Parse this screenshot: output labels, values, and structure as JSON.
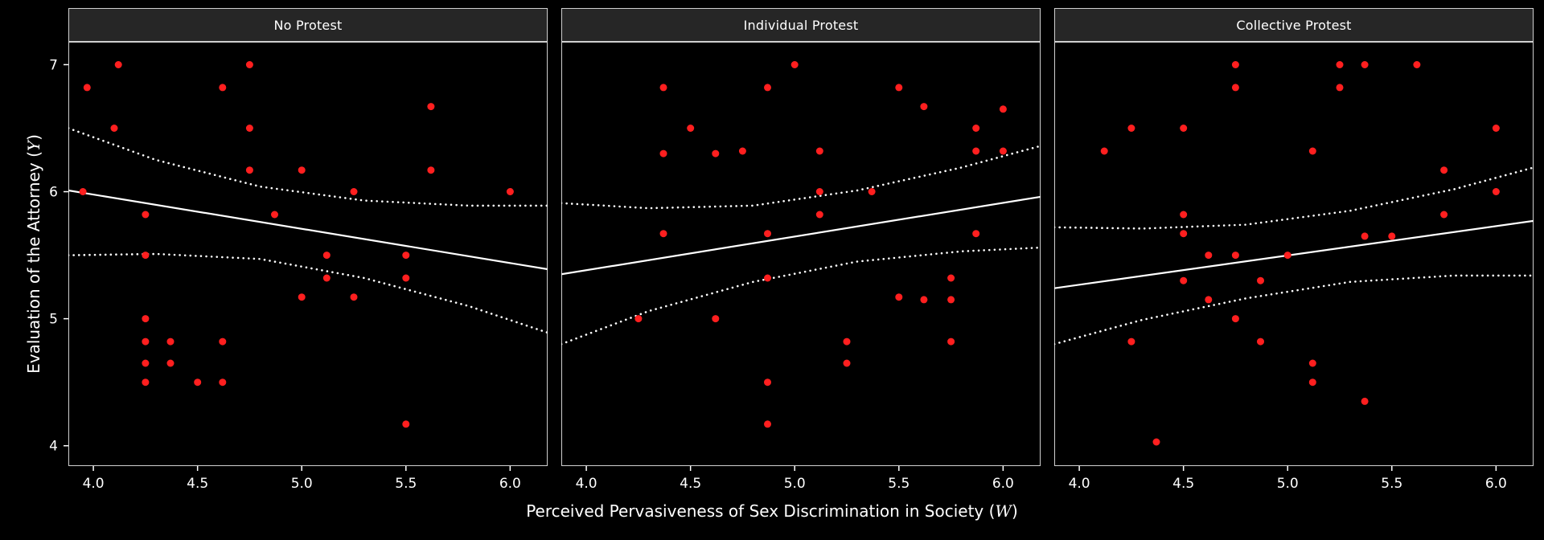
{
  "chart_data": {
    "type": "scatter",
    "title": "",
    "xlabel_prefix": "Perceived Pervasiveness of Sex Discrimination in Society (",
    "xlabel_var": "W",
    "xlabel_suffix": ")",
    "ylabel_prefix": "Evaluation of the Attorney (",
    "ylabel_var": "Y",
    "ylabel_suffix": ")",
    "x_domain": [
      3.88,
      6.18
    ],
    "y_domain": [
      3.84,
      7.18
    ],
    "x_ticks": [
      4.0,
      4.5,
      5.0,
      5.5,
      6.0
    ],
    "x_tick_labels": [
      "4.0",
      "4.5",
      "5.0",
      "5.5",
      "6.0"
    ],
    "y_ticks": [
      4,
      5,
      6,
      7
    ],
    "y_tick_labels": [
      "4",
      "5",
      "6",
      "7"
    ],
    "grid": false,
    "legend": "none",
    "colors": {
      "background": "#000000",
      "strip_bg": "#262626",
      "panel_border": "#d0d0d0",
      "point": "#ff1f1f",
      "line": "#ffffff",
      "tick": "#ffffff",
      "text": "#ffffff"
    },
    "panels": [
      {
        "label": "No Protest",
        "fit": [
          [
            3.88,
            6.01
          ],
          [
            6.18,
            5.39
          ]
        ],
        "upper": [
          [
            3.88,
            6.5
          ],
          [
            4.3,
            6.25
          ],
          [
            4.8,
            6.04
          ],
          [
            5.3,
            5.93
          ],
          [
            5.8,
            5.89
          ],
          [
            6.18,
            5.89
          ]
        ],
        "lower": [
          [
            3.88,
            5.5
          ],
          [
            4.3,
            5.51
          ],
          [
            4.8,
            5.47
          ],
          [
            5.3,
            5.32
          ],
          [
            5.8,
            5.1
          ],
          [
            6.18,
            4.89
          ]
        ],
        "points": [
          [
            3.97,
            6.82
          ],
          [
            4.12,
            7.0
          ],
          [
            4.1,
            6.5
          ],
          [
            3.95,
            6.0
          ],
          [
            4.25,
            5.82
          ],
          [
            4.25,
            5.5
          ],
          [
            4.25,
            5.0
          ],
          [
            4.25,
            4.82
          ],
          [
            4.37,
            4.82
          ],
          [
            4.25,
            4.65
          ],
          [
            4.37,
            4.65
          ],
          [
            4.25,
            4.5
          ],
          [
            4.5,
            4.5
          ],
          [
            4.62,
            4.82
          ],
          [
            4.62,
            4.5
          ],
          [
            4.62,
            6.82
          ],
          [
            4.75,
            7.0
          ],
          [
            4.75,
            6.5
          ],
          [
            4.75,
            6.17
          ],
          [
            4.87,
            5.82
          ],
          [
            5.0,
            6.17
          ],
          [
            5.0,
            5.17
          ],
          [
            5.12,
            5.5
          ],
          [
            5.12,
            5.32
          ],
          [
            5.25,
            6.0
          ],
          [
            5.25,
            5.17
          ],
          [
            5.5,
            5.5
          ],
          [
            5.5,
            5.32
          ],
          [
            5.5,
            4.17
          ],
          [
            5.62,
            6.67
          ],
          [
            5.62,
            6.17
          ],
          [
            6.0,
            6.0
          ]
        ]
      },
      {
        "label": "Individual Protest",
        "fit": [
          [
            3.88,
            5.35
          ],
          [
            6.18,
            5.96
          ]
        ],
        "upper": [
          [
            3.88,
            5.91
          ],
          [
            4.3,
            5.87
          ],
          [
            4.8,
            5.89
          ],
          [
            5.3,
            6.01
          ],
          [
            5.8,
            6.19
          ],
          [
            6.18,
            6.36
          ]
        ],
        "lower": [
          [
            3.88,
            4.8
          ],
          [
            4.3,
            5.06
          ],
          [
            4.8,
            5.29
          ],
          [
            5.3,
            5.45
          ],
          [
            5.8,
            5.53
          ],
          [
            6.18,
            5.56
          ]
        ],
        "points": [
          [
            4.25,
            5.0
          ],
          [
            4.37,
            6.82
          ],
          [
            4.37,
            6.3
          ],
          [
            4.37,
            5.67
          ],
          [
            4.5,
            6.5
          ],
          [
            4.62,
            6.3
          ],
          [
            4.62,
            5.0
          ],
          [
            4.75,
            6.32
          ],
          [
            4.87,
            6.82
          ],
          [
            4.87,
            5.67
          ],
          [
            4.87,
            5.32
          ],
          [
            4.87,
            4.5
          ],
          [
            4.87,
            4.17
          ],
          [
            5.0,
            7.0
          ],
          [
            5.12,
            6.32
          ],
          [
            5.12,
            6.0
          ],
          [
            5.12,
            5.82
          ],
          [
            5.25,
            4.82
          ],
          [
            5.25,
            4.65
          ],
          [
            5.37,
            6.0
          ],
          [
            5.5,
            6.82
          ],
          [
            5.5,
            5.17
          ],
          [
            5.62,
            6.67
          ],
          [
            5.62,
            5.15
          ],
          [
            5.75,
            5.32
          ],
          [
            5.75,
            5.15
          ],
          [
            5.75,
            4.82
          ],
          [
            5.87,
            6.5
          ],
          [
            5.87,
            6.32
          ],
          [
            5.87,
            5.67
          ],
          [
            6.0,
            6.65
          ],
          [
            6.0,
            6.32
          ]
        ]
      },
      {
        "label": "Collective Protest",
        "fit": [
          [
            3.88,
            5.24
          ],
          [
            6.18,
            5.77
          ]
        ],
        "upper": [
          [
            3.88,
            5.72
          ],
          [
            4.3,
            5.71
          ],
          [
            4.8,
            5.74
          ],
          [
            5.3,
            5.85
          ],
          [
            5.8,
            6.02
          ],
          [
            6.18,
            6.19
          ]
        ],
        "lower": [
          [
            3.88,
            4.8
          ],
          [
            4.3,
            4.99
          ],
          [
            4.8,
            5.16
          ],
          [
            5.3,
            5.29
          ],
          [
            5.8,
            5.34
          ],
          [
            6.18,
            5.34
          ]
        ],
        "points": [
          [
            4.12,
            6.32
          ],
          [
            4.25,
            6.5
          ],
          [
            4.25,
            4.82
          ],
          [
            4.37,
            4.03
          ],
          [
            4.5,
            6.5
          ],
          [
            4.5,
            5.82
          ],
          [
            4.5,
            5.67
          ],
          [
            4.5,
            5.3
          ],
          [
            4.62,
            5.5
          ],
          [
            4.62,
            5.15
          ],
          [
            4.75,
            7.0
          ],
          [
            4.75,
            6.82
          ],
          [
            4.75,
            5.5
          ],
          [
            4.75,
            5.0
          ],
          [
            4.87,
            5.3
          ],
          [
            4.87,
            4.82
          ],
          [
            5.0,
            5.5
          ],
          [
            5.12,
            6.32
          ],
          [
            5.12,
            4.65
          ],
          [
            5.12,
            4.5
          ],
          [
            5.25,
            7.0
          ],
          [
            5.25,
            6.82
          ],
          [
            5.37,
            7.0
          ],
          [
            5.37,
            5.65
          ],
          [
            5.37,
            4.35
          ],
          [
            5.5,
            5.65
          ],
          [
            5.62,
            7.0
          ],
          [
            5.75,
            6.17
          ],
          [
            5.75,
            5.82
          ],
          [
            6.0,
            6.5
          ],
          [
            6.0,
            6.0
          ]
        ]
      }
    ]
  }
}
